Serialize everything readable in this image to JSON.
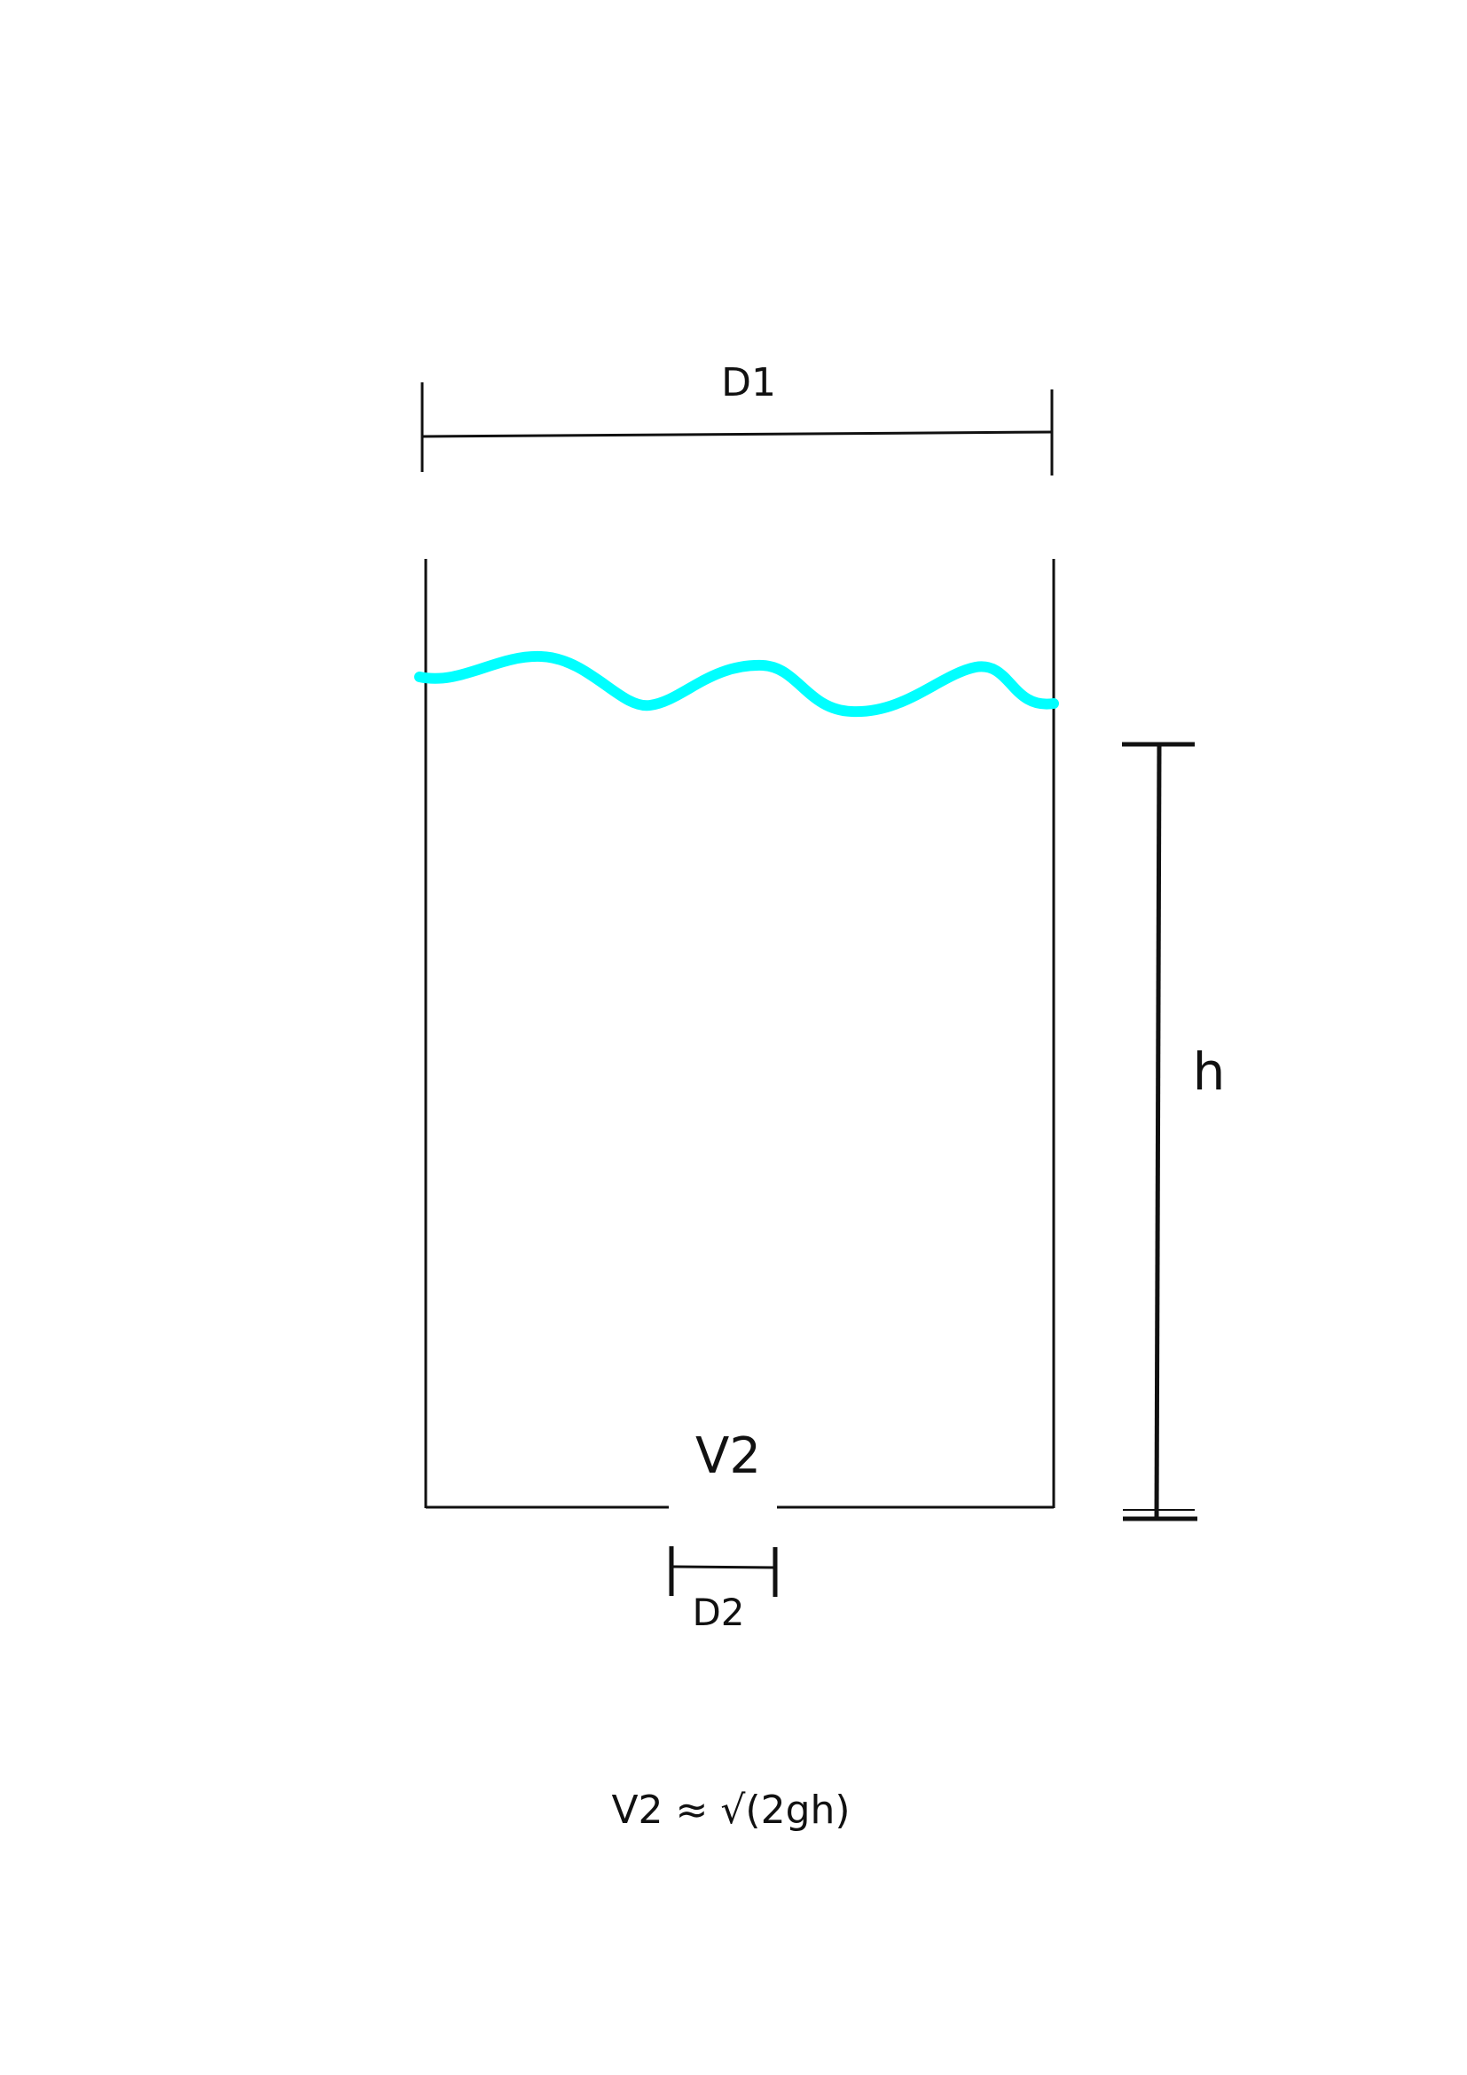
{
  "labels": {
    "d1": "D1",
    "d2": "D2",
    "h": "h",
    "v2": "V2",
    "formula": "V2 ≈ √(2gh)"
  },
  "colors": {
    "line": "#111111",
    "water": "#00ffff",
    "background": "#ffffff"
  }
}
